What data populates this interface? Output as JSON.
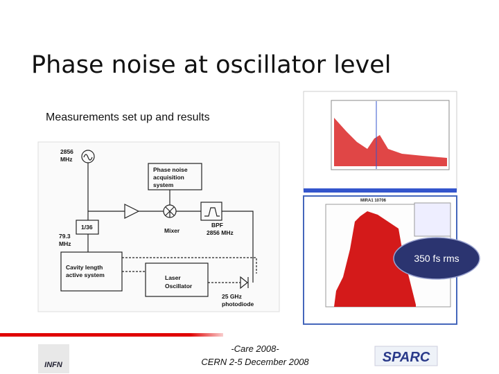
{
  "header": {
    "title": "Phase noise at oscillator level"
  },
  "subtitle": "Measurements set up and results",
  "diagram": {
    "source": [
      "2856",
      "MHz"
    ],
    "acquisition": [
      "Phase noise",
      "acquisition",
      "system"
    ],
    "divider": "1/36",
    "divided": [
      "79.3",
      "MHz"
    ],
    "mixer": "Mixer",
    "filter": [
      "BPF",
      "2856 MHz"
    ],
    "cavity": [
      "Cavity length",
      "active system"
    ],
    "laser": [
      "Laser",
      "Oscillator"
    ],
    "photodiode": [
      "25 GHz",
      "photodiode"
    ]
  },
  "histogram_title": "MIRA1 10706",
  "callout": "350 fs rms",
  "footer": {
    "lines": [
      "-Care 2008-",
      "CERN 2-5 December 2008"
    ]
  },
  "logos": [
    "INFN",
    "SPARC"
  ]
}
